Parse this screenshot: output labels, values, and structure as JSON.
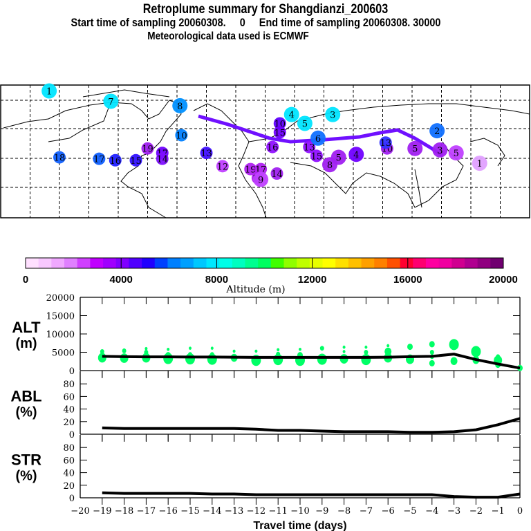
{
  "header": {
    "title": "Retroplume summary for Shangdianzi_200603",
    "subtitle": "Start time of sampling 20060308.     0     End time of sampling 20060308. 30000",
    "met_note": "Meteorological data used is ECMWF"
  },
  "map": {
    "description": "World map (Northern Hemisphere, 180W-180E) with retroplume cluster centres numbered by travel day, coloured by altitude",
    "clusters": [
      {
        "label": "1",
        "lon": -147,
        "lat": 86,
        "color": "#00e5ff"
      },
      {
        "label": "7",
        "lon": -105,
        "lat": 79,
        "color": "#00e5ff"
      },
      {
        "label": "8",
        "lon": -58,
        "lat": 76,
        "color": "#0090ff"
      },
      {
        "label": "10",
        "lon": -57,
        "lat": 56,
        "color": "#0080ff"
      },
      {
        "label": "19",
        "lon": -80,
        "lat": 47,
        "color": "#a020f0"
      },
      {
        "label": "17",
        "lon": -70,
        "lat": 44,
        "color": "#7000ff"
      },
      {
        "label": "14",
        "lon": -70,
        "lat": 40,
        "color": "#8010ff"
      },
      {
        "label": "18",
        "lon": -140,
        "lat": 41,
        "color": "#1060ff"
      },
      {
        "label": "17",
        "lon": -113,
        "lat": 40,
        "color": "#1060ff"
      },
      {
        "label": "16",
        "lon": -102,
        "lat": 39,
        "color": "#2020ff"
      },
      {
        "label": "15",
        "lon": -88,
        "lat": 39,
        "color": "#3010ff"
      },
      {
        "label": "13",
        "lon": -40,
        "lat": 44,
        "color": "#4010ff"
      },
      {
        "label": "12",
        "lon": -29,
        "lat": 35,
        "color": "#c040ff"
      },
      {
        "label": "19",
        "lon": -10,
        "lat": 33,
        "color": "#b020f0"
      },
      {
        "label": "17",
        "lon": -3,
        "lat": 33,
        "color": "#b020f0"
      },
      {
        "label": "14",
        "lon": 8,
        "lat": 30,
        "color": "#a020f0"
      },
      {
        "label": "10",
        "lon": 10,
        "lat": 64,
        "color": "#6000ff"
      },
      {
        "label": "15",
        "lon": 10,
        "lat": 58,
        "color": "#7000ff"
      },
      {
        "label": "16",
        "lon": 5,
        "lat": 48,
        "color": "#9010ff"
      },
      {
        "label": "12",
        "lon": -5,
        "lat": 27,
        "color": "#b020f0"
      },
      {
        "label": "9",
        "lon": -3,
        "lat": 26,
        "color": "#c040ff"
      },
      {
        "label": "13",
        "lon": 30,
        "lat": 48,
        "color": "#9010ff"
      },
      {
        "label": "6",
        "lon": 36,
        "lat": 54,
        "color": "#1070ff"
      },
      {
        "label": "15",
        "lon": 35,
        "lat": 42,
        "color": "#9010ff"
      },
      {
        "label": "8",
        "lon": 44,
        "lat": 36,
        "color": "#a020f0"
      },
      {
        "label": "5",
        "lon": 50,
        "lat": 41,
        "color": "#a020f0"
      },
      {
        "label": "4",
        "lon": 62,
        "lat": 43,
        "color": "#7000ff"
      },
      {
        "label": "10",
        "lon": 83,
        "lat": 47,
        "color": "#a020f0"
      },
      {
        "label": "13",
        "lon": 82,
        "lat": 51,
        "color": "#3030ff"
      },
      {
        "label": "5",
        "lon": 102,
        "lat": 47,
        "color": "#a020f0"
      },
      {
        "label": "4",
        "lon": 18,
        "lat": 70,
        "color": "#00e5ff"
      },
      {
        "label": "5",
        "lon": 27,
        "lat": 64,
        "color": "#00e5ff"
      },
      {
        "label": "3",
        "lon": 46,
        "lat": 70,
        "color": "#00e5ff"
      },
      {
        "label": "2",
        "lon": 117,
        "lat": 59,
        "color": "#1070ff"
      },
      {
        "label": "3",
        "lon": 119,
        "lat": 46,
        "color": "#a020f0"
      },
      {
        "label": "5",
        "lon": 130,
        "lat": 44,
        "color": "#c040ff"
      },
      {
        "label": "1",
        "lon": 146,
        "lat": 37,
        "color": "#e0a0ff"
      }
    ]
  },
  "colorbar": {
    "colors": [
      "#ffe0ff",
      "#f8c8ff",
      "#f0a8ff",
      "#e080ff",
      "#d040ff",
      "#c000ff",
      "#a000ff",
      "#8000ff",
      "#5000ff",
      "#2000ff",
      "#0040ff",
      "#0080ff",
      "#00a0ff",
      "#00c8ff",
      "#00e8ff",
      "#00ffe8",
      "#00ffc0",
      "#00ff90",
      "#00ff60",
      "#40ff00",
      "#90ff00",
      "#c0ff00",
      "#e8ff00",
      "#ffff00",
      "#ffe000",
      "#ffc000",
      "#ffa000",
      "#ff8000",
      "#ff5000",
      "#ff0030",
      "#ff0070",
      "#ff00a0",
      "#f000a0",
      "#d00090",
      "#b00090",
      "#900080",
      "#700070"
    ],
    "tick_labels": [
      "0",
      "4000",
      "8000",
      "12000",
      "16000",
      "20000"
    ],
    "label": "Altitude (m)"
  },
  "chart_data": [
    {
      "type": "line",
      "panel": "ALT",
      "ylabel_line1": "ALT",
      "ylabel_line2": "(m)",
      "ylim": [
        0,
        20000
      ],
      "yticks": [
        "0",
        "5000",
        "10000",
        "15000",
        "20000"
      ],
      "x": [
        -19,
        -18,
        -17,
        -16,
        -15,
        -14,
        -13,
        -12,
        -11,
        -10,
        -9,
        -8,
        -7,
        -6,
        -5,
        -4,
        -3,
        -2,
        -1,
        0
      ],
      "values": [
        3900,
        3800,
        3750,
        3750,
        3700,
        3700,
        3650,
        3600,
        3600,
        3600,
        3600,
        3600,
        3600,
        3650,
        3800,
        3900,
        4500,
        3000,
        1800,
        700
      ],
      "scatter_color": "#00ff66",
      "scatter_points": [
        [
          -19,
          5200,
          3
        ],
        [
          -19,
          3500,
          6
        ],
        [
          -18,
          5400,
          3
        ],
        [
          -18,
          3400,
          6
        ],
        [
          -17,
          6000,
          2
        ],
        [
          -17,
          5000,
          3
        ],
        [
          -17,
          3500,
          6
        ],
        [
          -16,
          5800,
          2
        ],
        [
          -16,
          4200,
          4
        ],
        [
          -16,
          3300,
          7
        ],
        [
          -15,
          6100,
          2
        ],
        [
          -15,
          4400,
          3
        ],
        [
          -15,
          3200,
          7
        ],
        [
          -14,
          6100,
          2
        ],
        [
          -14,
          4400,
          3
        ],
        [
          -14,
          3100,
          7
        ],
        [
          -13,
          5300,
          2
        ],
        [
          -13,
          3500,
          5
        ],
        [
          -12,
          5300,
          2
        ],
        [
          -12,
          2800,
          7
        ],
        [
          -11,
          5700,
          2
        ],
        [
          -11,
          4500,
          3
        ],
        [
          -11,
          3000,
          7
        ],
        [
          -10,
          5800,
          2
        ],
        [
          -10,
          4200,
          4
        ],
        [
          -10,
          2800,
          7
        ],
        [
          -9,
          6100,
          3
        ],
        [
          -9,
          3100,
          7
        ],
        [
          -8,
          6400,
          2
        ],
        [
          -8,
          5200,
          2
        ],
        [
          -8,
          3200,
          6
        ],
        [
          -7,
          6400,
          2
        ],
        [
          -7,
          5000,
          3
        ],
        [
          -7,
          3000,
          7
        ],
        [
          -6,
          6800,
          2
        ],
        [
          -6,
          5200,
          5
        ],
        [
          -6,
          3500,
          6
        ],
        [
          -5,
          6500,
          4
        ],
        [
          -5,
          3100,
          6
        ],
        [
          -4,
          7200,
          4
        ],
        [
          -4,
          5000,
          3
        ],
        [
          -4,
          3800,
          3
        ],
        [
          -4,
          2000,
          4
        ],
        [
          -3,
          7100,
          7
        ],
        [
          -3,
          2600,
          5
        ],
        [
          -2,
          5200,
          7
        ],
        [
          -2,
          2900,
          5
        ],
        [
          -1,
          3800,
          3
        ],
        [
          -1,
          2800,
          6
        ],
        [
          -1,
          1600,
          4
        ],
        [
          0,
          700,
          4
        ]
      ]
    },
    {
      "type": "line",
      "panel": "ABL",
      "ylabel_line1": "ABL",
      "ylabel_line2": "(%)",
      "ylim": [
        0,
        100
      ],
      "yticks": [
        "0",
        "20",
        "40",
        "60",
        "80"
      ],
      "x": [
        -19,
        -18,
        -17,
        -16,
        -15,
        -14,
        -13,
        -12,
        -11,
        -10,
        -9,
        -8,
        -7,
        -6,
        -5,
        -4,
        -3,
        -2,
        -1,
        0
      ],
      "values": [
        10,
        9,
        9,
        9,
        9,
        9,
        9,
        8,
        6,
        6,
        5,
        4,
        4,
        4,
        3,
        3,
        4,
        7,
        15,
        25
      ]
    },
    {
      "type": "line",
      "panel": "STR",
      "ylabel_line1": "STR",
      "ylabel_line2": "(%)",
      "ylim": [
        0,
        100
      ],
      "yticks": [
        "0",
        "20",
        "40",
        "60",
        "80"
      ],
      "x": [
        -19,
        -18,
        -17,
        -16,
        -15,
        -14,
        -13,
        -12,
        -11,
        -10,
        -9,
        -8,
        -7,
        -6,
        -5,
        -4,
        -3,
        -2,
        -1,
        0
      ],
      "values": [
        8,
        7,
        7,
        7,
        7,
        6,
        6,
        5,
        5,
        5,
        5,
        5,
        5,
        5,
        5,
        5,
        2,
        1,
        1,
        6
      ],
      "xlabel": "Travel time (days)",
      "xticks": [
        "-20",
        "-19",
        "-18",
        "-17",
        "-16",
        "-15",
        "-14",
        "-13",
        "-12",
        "-11",
        "-10",
        "-9",
        "-8",
        "-7",
        "-6",
        "-5",
        "-4",
        "-3",
        "-2",
        "-1",
        "0"
      ],
      "xlim": [
        -20,
        0
      ]
    }
  ]
}
